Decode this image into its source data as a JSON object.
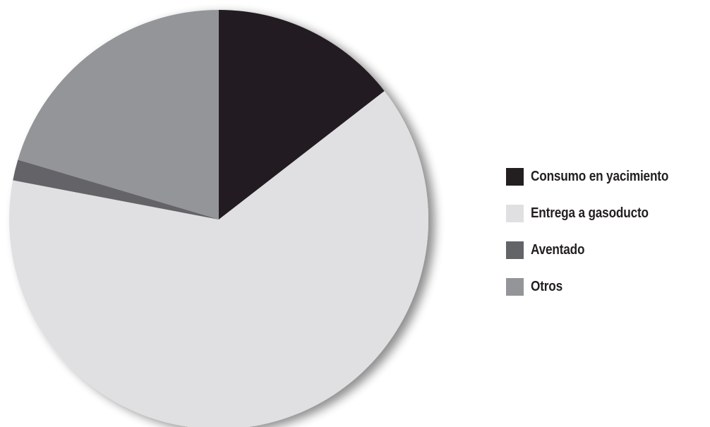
{
  "chart_data": {
    "type": "pie",
    "start_angle_deg": 0,
    "direction": "clockwise",
    "slices": [
      {
        "label": "Consumo en yacimiento",
        "value": 14.5,
        "color": "#231f20"
      },
      {
        "label": "Entrega a gasoducto",
        "value": 63.5,
        "color": "#e0e0e2"
      },
      {
        "label": "Aventado",
        "value": 1.6,
        "color": "#636467"
      },
      {
        "label": "Otros",
        "value": 20.4,
        "color": "#949598"
      }
    ],
    "legend_position": "right"
  }
}
